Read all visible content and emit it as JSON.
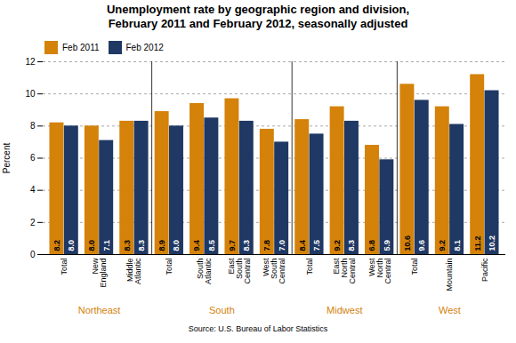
{
  "chart_data": {
    "type": "bar",
    "title": "Unemployment rate by geographic region and division,\nFebruary 2011 and February 2012, seasonally adjusted",
    "ylabel": "Percent",
    "source": "Source: U.S. Bureau of Labor Statistics",
    "categories": [
      "Total",
      "New\nEngland",
      "Middle\nAtlantic",
      "Total",
      "South\nAtlantic",
      "East\nSouth\nCentral",
      "West\nSouth\nCentral",
      "Total",
      "East\nNorth\nCentral",
      "West\nNorth\nCentral",
      "Total",
      "Mountain",
      "Pacific"
    ],
    "series": [
      {
        "name": "Feb 2011",
        "color": "#D4820A",
        "values": [
          8.2,
          8.0,
          8.3,
          8.9,
          9.4,
          9.7,
          7.8,
          8.4,
          9.2,
          6.8,
          10.6,
          9.2,
          11.2
        ],
        "value_labels": [
          "8.2",
          "8.0",
          "8.3",
          "8.9",
          "9.4",
          "9.7",
          "7.8",
          "8.4",
          "9.2",
          "6.8",
          "10.6",
          "9.2",
          "11.2"
        ]
      },
      {
        "name": "Feb 2012",
        "color": "#1F3864",
        "values": [
          8.0,
          7.1,
          8.3,
          8.0,
          8.5,
          8.3,
          7.0,
          7.5,
          8.3,
          5.9,
          9.6,
          8.1,
          10.2
        ],
        "value_labels": [
          "8.0",
          "7.1",
          "8.3",
          "8.0",
          "8.5",
          "8.3",
          "7.0",
          "7.5",
          "8.3",
          "5.9",
          "9.6",
          "8.1",
          "10.2"
        ]
      }
    ],
    "regions": [
      {
        "name": "Northeast",
        "count": 3,
        "color": "#D4820A"
      },
      {
        "name": "South",
        "count": 4,
        "color": "#D4820A"
      },
      {
        "name": "Midwest",
        "count": 3,
        "color": "#D4820A"
      },
      {
        "name": "West",
        "count": 3,
        "color": "#D4820A"
      }
    ],
    "ylim": [
      0,
      12
    ],
    "yticks": [
      0,
      2,
      4,
      6,
      8,
      10,
      12
    ],
    "grid": true,
    "legend": "upper left",
    "data_labels": true
  }
}
